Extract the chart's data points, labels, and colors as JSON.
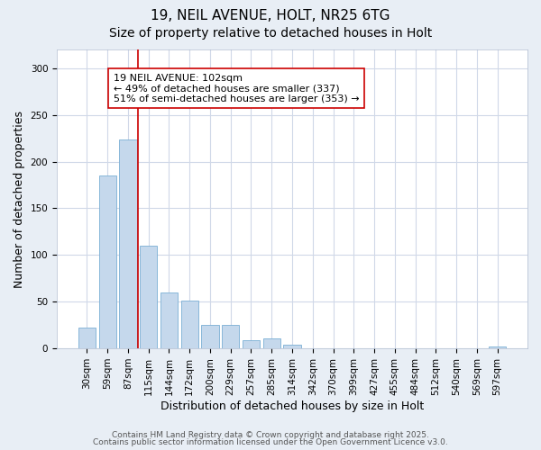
{
  "title1": "19, NEIL AVENUE, HOLT, NR25 6TG",
  "title2": "Size of property relative to detached houses in Holt",
  "xlabel": "Distribution of detached houses by size in Holt",
  "ylabel": "Number of detached properties",
  "bar_values": [
    22,
    185,
    224,
    110,
    60,
    51,
    25,
    25,
    9,
    11,
    4,
    0,
    0,
    0,
    0,
    0,
    0,
    0,
    0,
    0,
    2
  ],
  "categories": [
    "30sqm",
    "59sqm",
    "87sqm",
    "115sqm",
    "144sqm",
    "172sqm",
    "200sqm",
    "229sqm",
    "257sqm",
    "285sqm",
    "314sqm",
    "342sqm",
    "370sqm",
    "399sqm",
    "427sqm",
    "455sqm",
    "484sqm",
    "512sqm",
    "540sqm",
    "569sqm",
    "597sqm"
  ],
  "bar_color": "#c5d8ec",
  "bar_edge_color": "#7aafd4",
  "vline_x": 2.5,
  "vline_color": "#cc0000",
  "annotation_text": "19 NEIL AVENUE: 102sqm\n← 49% of detached houses are smaller (337)\n51% of semi-detached houses are larger (353) →",
  "annotation_box_color": "#ffffff",
  "annotation_box_edge": "#cc0000",
  "ylim": [
    0,
    320
  ],
  "yticks": [
    0,
    50,
    100,
    150,
    200,
    250,
    300
  ],
  "background_color": "#e8eef5",
  "plot_bg_color": "#ffffff",
  "footer1": "Contains HM Land Registry data © Crown copyright and database right 2025.",
  "footer2": "Contains public sector information licensed under the Open Government Licence v3.0.",
  "title_fontsize": 11,
  "subtitle_fontsize": 10,
  "annotation_fontsize": 8,
  "axis_label_fontsize": 9,
  "tick_fontsize": 7.5,
  "footer_fontsize": 6.5
}
